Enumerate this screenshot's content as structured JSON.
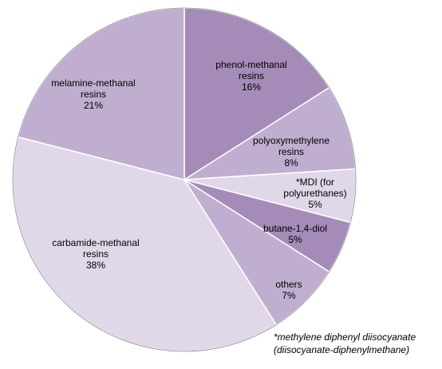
{
  "chart_data": {
    "type": "pie",
    "categories": [
      "phenol-methanal resins",
      "polyoxymethylene resins",
      "*MDI (for polyurethanes)",
      "butane-1,4-diol",
      "others",
      "carbamide-methanal resins",
      "melamine-methanal resins"
    ],
    "values": [
      16,
      8,
      5,
      5,
      7,
      38,
      21
    ],
    "value_labels": [
      "16%",
      "8%",
      "5%",
      "5%",
      "7%",
      "38%",
      "21%"
    ],
    "colors": [
      "#a58cb8",
      "#c0aed0",
      "#e0d8e8",
      "#a58cb8",
      "#c0aed0",
      "#e0d8e8",
      "#c0aed0"
    ],
    "footnote": [
      "*methylene diphenyl diisocyanate",
      "(diisocyanate-diphenylmethane)"
    ]
  }
}
